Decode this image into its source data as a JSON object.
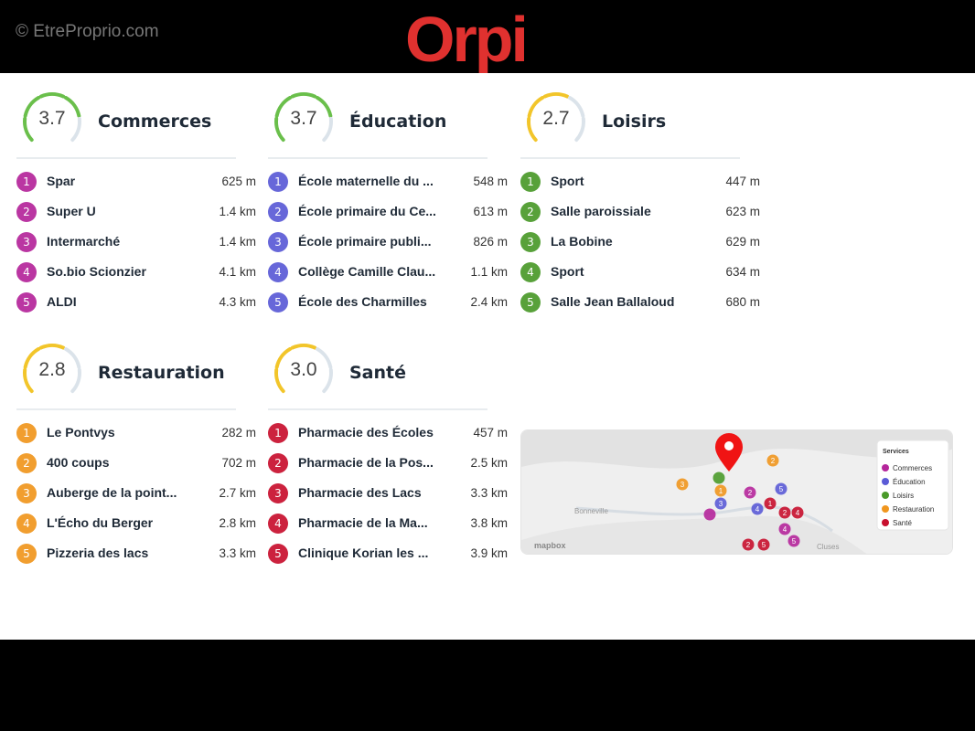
{
  "header": {
    "copyright": "© EtreProprio.com",
    "logo": "Orpi",
    "logo_color": "#e0312f"
  },
  "categories": [
    {
      "title": "Commerces",
      "score": "3.7",
      "score_value": 3.7,
      "gauge_color": "#6abf4b",
      "badge_color": "#b5269b",
      "items": [
        {
          "n": "1",
          "name": "Spar",
          "dist": "625 m"
        },
        {
          "n": "2",
          "name": "Super U",
          "dist": "1.4 km"
        },
        {
          "n": "3",
          "name": "Intermarché",
          "dist": "1.4 km"
        },
        {
          "n": "4",
          "name": "So.bio Scionzier",
          "dist": "4.1 km"
        },
        {
          "n": "5",
          "name": "ALDI",
          "dist": "4.3 km"
        }
      ]
    },
    {
      "title": "Éducation",
      "score": "3.7",
      "score_value": 3.7,
      "gauge_color": "#6abf4b",
      "badge_color": "#5b5bd6",
      "items": [
        {
          "n": "1",
          "name": "École maternelle du ...",
          "dist": "548 m"
        },
        {
          "n": "2",
          "name": "École primaire du Ce...",
          "dist": "613 m"
        },
        {
          "n": "3",
          "name": "École primaire publi...",
          "dist": "826 m"
        },
        {
          "n": "4",
          "name": "Collège Camille Clau...",
          "dist": "1.1 km"
        },
        {
          "n": "5",
          "name": "École des Charmilles",
          "dist": "2.4 km"
        }
      ]
    },
    {
      "title": "Loisirs",
      "score": "2.7",
      "score_value": 2.7,
      "gauge_color": "#f2c52a",
      "badge_color": "#4a9a2a",
      "items": [
        {
          "n": "1",
          "name": "Sport",
          "dist": "447 m"
        },
        {
          "n": "2",
          "name": "Salle paroissiale",
          "dist": "623 m"
        },
        {
          "n": "3",
          "name": "La Bobine",
          "dist": "629 m"
        },
        {
          "n": "4",
          "name": "Sport",
          "dist": "634 m"
        },
        {
          "n": "5",
          "name": "Salle Jean Ballaloud",
          "dist": "680 m"
        }
      ]
    },
    {
      "title": "Restauration",
      "score": "2.8",
      "score_value": 2.8,
      "gauge_color": "#f2c52a",
      "badge_color": "#f0961e",
      "items": [
        {
          "n": "1",
          "name": "Le Pontvys",
          "dist": "282 m"
        },
        {
          "n": "2",
          "name": "400 coups",
          "dist": "702 m"
        },
        {
          "n": "3",
          "name": "Auberge de la point...",
          "dist": "2.7 km"
        },
        {
          "n": "4",
          "name": "L'Écho du Berger",
          "dist": "2.8 km"
        },
        {
          "n": "5",
          "name": "Pizzeria des lacs",
          "dist": "3.3 km"
        }
      ]
    },
    {
      "title": "Santé",
      "score": "3.0",
      "score_value": 3.0,
      "gauge_color": "#f2c52a",
      "badge_color": "#c8102e",
      "items": [
        {
          "n": "1",
          "name": "Pharmacie des Écoles",
          "dist": "457 m"
        },
        {
          "n": "2",
          "name": "Pharmacie de la Pos...",
          "dist": "2.5 km"
        },
        {
          "n": "3",
          "name": "Pharmacie des Lacs",
          "dist": "3.3 km"
        },
        {
          "n": "4",
          "name": "Pharmacie de la Ma...",
          "dist": "3.8 km"
        },
        {
          "n": "5",
          "name": "Clinique Korian les ...",
          "dist": "3.9 km"
        }
      ]
    }
  ],
  "map": {
    "legend_title": "Services",
    "legend": [
      "Commerces",
      "Éducation",
      "Loisirs",
      "Restauration",
      "Santé"
    ],
    "towns": [
      "Bonneville",
      "Cluses"
    ],
    "attribution": "mapbox",
    "pin_color": "#f01414"
  }
}
